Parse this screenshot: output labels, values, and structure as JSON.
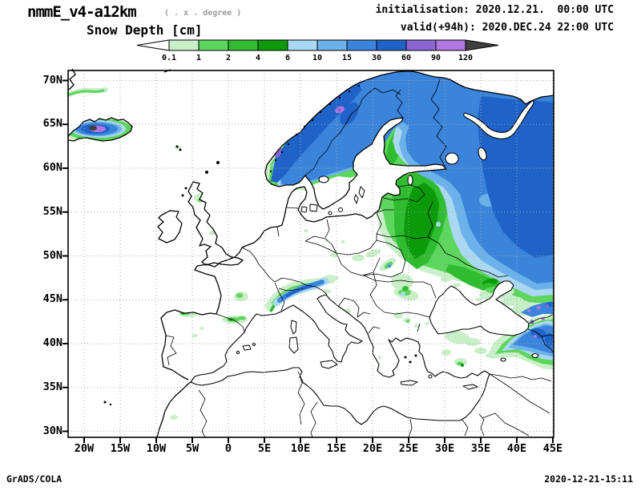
{
  "header": {
    "model": "nmmE_v4-a12km",
    "model_note": "( . x . degree )",
    "field_title": "Snow Depth [cm]",
    "init_line": "initialisation: 2020.12.21.  00:00 UTC",
    "valid_line": "valid(+94h): 2020.DEC.24 22:00 UTC"
  },
  "legend": {
    "tick_labels": [
      "0.1",
      "1",
      "2",
      "4",
      "6",
      "10",
      "15",
      "30",
      "60",
      "90",
      "120"
    ],
    "colors": [
      "#c8efc8",
      "#5cd65c",
      "#30bc30",
      "#0a9a0a",
      "#aad8f2",
      "#6cb2ea",
      "#3a84dc",
      "#1f63c8",
      "#8a66d2",
      "#b077e0"
    ],
    "under_color": "#ffffff",
    "over_color": "#3f3f3f"
  },
  "map": {
    "lat_labels": [
      "70N",
      "65N",
      "60N",
      "55N",
      "50N",
      "45N",
      "40N",
      "35N",
      "30N"
    ],
    "lon_labels": [
      "20W",
      "15W",
      "10W",
      "5W",
      "0",
      "5E",
      "10E",
      "15E",
      "20E",
      "25E",
      "30E",
      "35E",
      "40E",
      "45E"
    ]
  },
  "footer": {
    "left": "GrADS/COLA",
    "right": "2020-12-21-15:11"
  }
}
